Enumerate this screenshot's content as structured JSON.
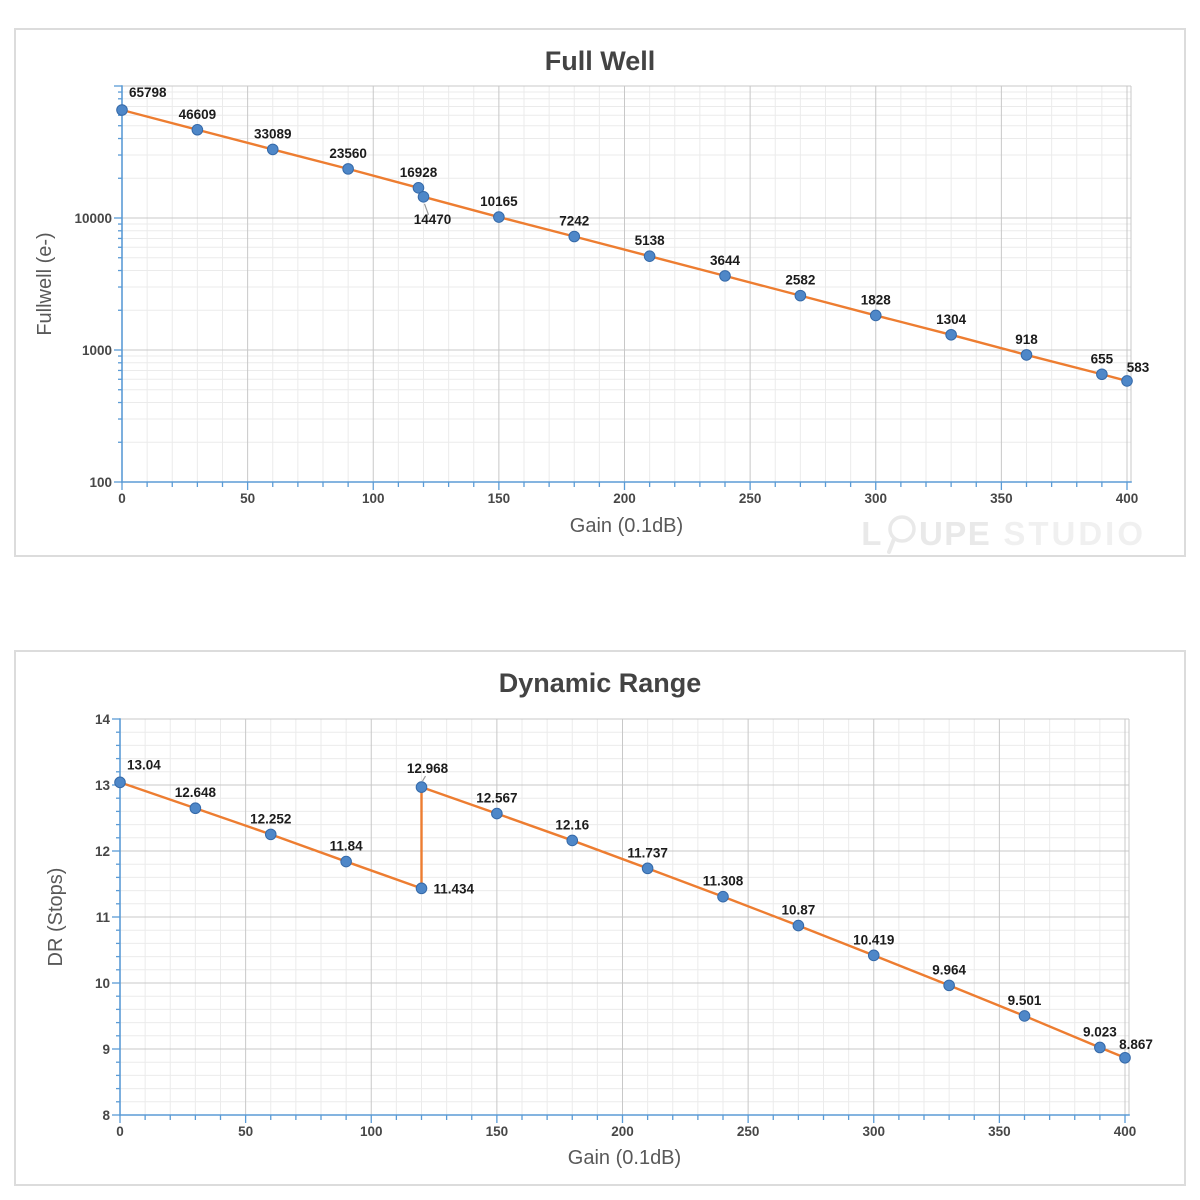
{
  "watermark": {
    "l": "L",
    "upe": "UPE",
    "studio": "STUDIO"
  },
  "chart_data": [
    {
      "id": "full-well",
      "type": "line",
      "title": "Full Well",
      "xlabel": "Gain (0.1dB)",
      "ylabel": "Fullwell (e-)",
      "x": [
        0,
        30,
        60,
        90,
        118,
        120,
        150,
        180,
        210,
        240,
        270,
        300,
        330,
        360,
        390,
        400
      ],
      "y": [
        65798,
        46609,
        33089,
        23560,
        16928,
        14470,
        10165,
        7242,
        5138,
        3644,
        2582,
        1828,
        1304,
        918,
        655,
        583
      ],
      "point_labels": [
        "65798",
        "46609",
        "33089",
        "23560",
        "16928",
        "14470",
        "10165",
        "7242",
        "5138",
        "3644",
        "2582",
        "1828",
        "1304",
        "918",
        "655",
        "583"
      ],
      "label_pos": [
        "above-right-start",
        "above",
        "above",
        "above",
        "above",
        "below-leader",
        "above",
        "above",
        "above",
        "above",
        "above",
        "above",
        "above",
        "above",
        "above",
        "above-right"
      ],
      "x_ticks": [
        0,
        50,
        100,
        150,
        200,
        250,
        300,
        350,
        400
      ],
      "x_minor_step": 10,
      "xlim": [
        0,
        401
      ],
      "y_axis": {
        "scale": "log",
        "ticks": [
          100,
          1000,
          10000
        ],
        "lim": [
          100,
          100000
        ]
      },
      "grid": true,
      "legend": false,
      "colors": {
        "line": "#ED7D31",
        "marker": "#4E87C8",
        "marker_edge": "#3569A8",
        "axis": "#5B9BD5",
        "grid_major": "#c8c8c8",
        "grid_minor": "#ebebeb",
        "leader": "#9a9a9a"
      }
    },
    {
      "id": "dynamic-range",
      "type": "line",
      "title": "Dynamic Range",
      "xlabel": "Gain (0.1dB)",
      "ylabel": "DR (Stops)",
      "x": [
        0,
        30,
        60,
        90,
        120,
        120,
        150,
        180,
        210,
        240,
        270,
        300,
        330,
        360,
        390,
        400
      ],
      "y": [
        13.04,
        12.648,
        12.252,
        11.84,
        11.434,
        12.968,
        12.567,
        12.16,
        11.737,
        11.308,
        10.87,
        10.419,
        9.964,
        9.501,
        9.023,
        8.867
      ],
      "point_labels": [
        "13.04",
        "12.648",
        "12.252",
        "11.84",
        "11.434",
        "12.968",
        "12.567",
        "12.16",
        "11.737",
        "11.308",
        "10.87",
        "10.419",
        "9.964",
        "9.501",
        "9.023",
        "8.867"
      ],
      "label_pos": [
        "above-right-start",
        "above",
        "above",
        "above",
        "right",
        "above-leader",
        "above",
        "above",
        "above",
        "above",
        "above",
        "above",
        "above",
        "above",
        "above",
        "above-right"
      ],
      "x_ticks": [
        0,
        50,
        100,
        150,
        200,
        250,
        300,
        350,
        400
      ],
      "x_minor_step": 10,
      "xlim": [
        0,
        401
      ],
      "y_axis": {
        "scale": "linear",
        "ticks": [
          8,
          9,
          10,
          11,
          12,
          13,
          14
        ],
        "minor_step": 0.2,
        "lim": [
          8,
          14
        ]
      },
      "grid": true,
      "legend": false,
      "colors": {
        "line": "#ED7D31",
        "marker": "#4E87C8",
        "marker_edge": "#3569A8",
        "axis": "#5B9BD5",
        "grid_major": "#c8c8c8",
        "grid_minor": "#ebebeb",
        "leader": "#9a9a9a"
      }
    }
  ]
}
